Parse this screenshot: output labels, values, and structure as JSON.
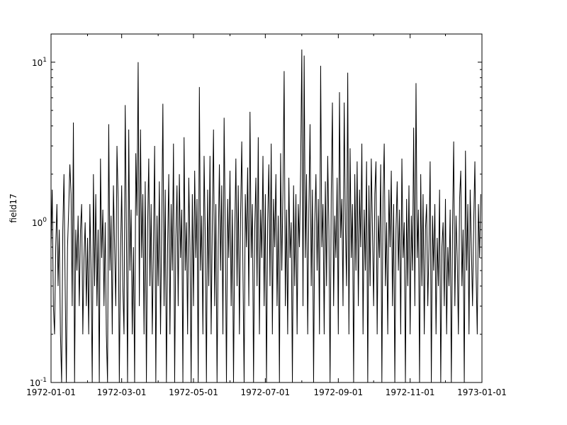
{
  "chart_data": {
    "type": "line",
    "title": "",
    "xlabel": "",
    "ylabel": "field17",
    "yscale": "log",
    "ylim": [
      0.1,
      15
    ],
    "xlim": [
      "1972-01-01",
      "1973-01-01"
    ],
    "x_start": "1972-01-01",
    "x_step": "1 day",
    "line_color": "#000000",
    "grid": false,
    "x_ticks": [
      "1972-01-01",
      "1972-03-01",
      "1972-05-01",
      "1972-07-01",
      "1972-09-01",
      "1972-11-01",
      "1973-01-01"
    ],
    "y_ticks": [
      {
        "value": 0.1,
        "base": "10",
        "exp": "-1"
      },
      {
        "value": 1,
        "base": "10",
        "exp": "0"
      },
      {
        "value": 10,
        "base": "10",
        "exp": "1"
      }
    ],
    "values": [
      0.7,
      1.6,
      0.3,
      0.2,
      0.7,
      1.3,
      0.4,
      0.9,
      0.2,
      0.1,
      0.9,
      2,
      0.4,
      0.1,
      0.7,
      1.2,
      2.3,
      1.5,
      0.3,
      4.2,
      0.1,
      0.9,
      0.5,
      1.1,
      0.3,
      0.9,
      1.3,
      0.2,
      0.6,
      1,
      0.3,
      0.8,
      0.2,
      1.3,
      0.5,
      0.1,
      2,
      0.4,
      1.5,
      0.3,
      0.9,
      0.1,
      2.5,
      0.6,
      1.2,
      0.3,
      1,
      0.2,
      0.1,
      4.1,
      0.5,
      1.1,
      0.2,
      1.7,
      0.7,
      0.3,
      3,
      1.4,
      0.1,
      0.6,
      1.7,
      0.4,
      0.2,
      5.4,
      0.9,
      0.1,
      3.8,
      0.5,
      1.2,
      0.2,
      0.7,
      0.1,
      2.7,
      1.1,
      10,
      0.3,
      3.8,
      0.6,
      1.5,
      0.2,
      1.8,
      0.1,
      0.9,
      2.5,
      0.4,
      1.3,
      0.2,
      0.7,
      3,
      0.1,
      1.1,
      0.4,
      1.8,
      0.2,
      0.9,
      5.5,
      0.3,
      1.6,
      0.1,
      0.7,
      2,
      0.2,
      1.3,
      0.5,
      3.1,
      0.1,
      0.8,
      1.7,
      0.3,
      2,
      0.6,
      1.2,
      0.1,
      3.4,
      0.5,
      1,
      0.2,
      1.9,
      0.7,
      0.1,
      1.5,
      0.3,
      2.1,
      0.6,
      1.4,
      0.1,
      7,
      0.5,
      1.1,
      0.2,
      2.6,
      0.8,
      0.1,
      1.6,
      0.4,
      2.6,
      0.2,
      1,
      3.8,
      0.3,
      1.3,
      0.1,
      0.7,
      2.3,
      0.5,
      1.7,
      0.2,
      4.5,
      0.9,
      0.1,
      1.4,
      0.6,
      2.1,
      0.3,
      1.2,
      0.1,
      0.8,
      2.5,
      0.4,
      1.7,
      0.2,
      1.1,
      3.2,
      0.5,
      0.1,
      1.5,
      0.7,
      2.2,
      0.3,
      4.9,
      0.6,
      1.3,
      0.1,
      0.9,
      1.9,
      0.4,
      3.4,
      0.2,
      1.2,
      0.6,
      2.6,
      0.3,
      1.5,
      0.1,
      1,
      2.3,
      0.4,
      3.1,
      0.2,
      1.4,
      0.7,
      2,
      0.3,
      1.1,
      0.1,
      2.7,
      0.5,
      1.6,
      8.8,
      0.3,
      1.2,
      0.2,
      1.9,
      0.6,
      1,
      0.1,
      1.7,
      0.4,
      1.5,
      0.2,
      1.3,
      0.7,
      2.1,
      12,
      0.3,
      11,
      0.6,
      2,
      0.2,
      1.2,
      4.1,
      0.4,
      1.6,
      0.1,
      1,
      2,
      0.5,
      1.4,
      0.2,
      9.5,
      0.7,
      1.3,
      0.2,
      1.8,
      0.4,
      2.6,
      0.9,
      0.1,
      1.5,
      5.6,
      0.3,
      1.1,
      0.6,
      1.9,
      0.2,
      6.5,
      0.8,
      1.4,
      0.3,
      5.6,
      1,
      0.4,
      8.6,
      0.2,
      2.9,
      0.6,
      1.3,
      0.1,
      2,
      0.5,
      2.4,
      0.3,
      1.6,
      0.7,
      3.1,
      0.2,
      1.2,
      0.5,
      2.4,
      0.1,
      1.7,
      0.4,
      2.5,
      0.9,
      0.3,
      1.5,
      2.4,
      0.2,
      1.1,
      0.6,
      2.3,
      0.1,
      1.4,
      3.1,
      0.4,
      1,
      0.2,
      1.6,
      0.7,
      2.1,
      0.3,
      1.3,
      0.1,
      0.9,
      1.8,
      0.5,
      1.2,
      0.2,
      2.5,
      0.6,
      1,
      0.1,
      1.4,
      0.4,
      1.7,
      0.2,
      1.1,
      0.5,
      3.9,
      0.3,
      7.4,
      0.6,
      1.2,
      0.1,
      2,
      0.4,
      1.5,
      0.2,
      0.9,
      1.3,
      0.3,
      0.7,
      2.4,
      0.1,
      1.1,
      0.5,
      1.3,
      0.2,
      0.8,
      0.4,
      1.6,
      0.1,
      0.7,
      1,
      0.3,
      1.4,
      0.2,
      0.7,
      0.4,
      1.2,
      0.1,
      0.9,
      3.2,
      0.3,
      1.1,
      0.6,
      0.2,
      1.4,
      2.1,
      0.4,
      0.9,
      0.1,
      2.8,
      0.5,
      1.3,
      0.2,
      1.6,
      0.7,
      0.3,
      1,
      2.4,
      0.5,
      0.2,
      1.3,
      0.6,
      1.5
    ]
  }
}
